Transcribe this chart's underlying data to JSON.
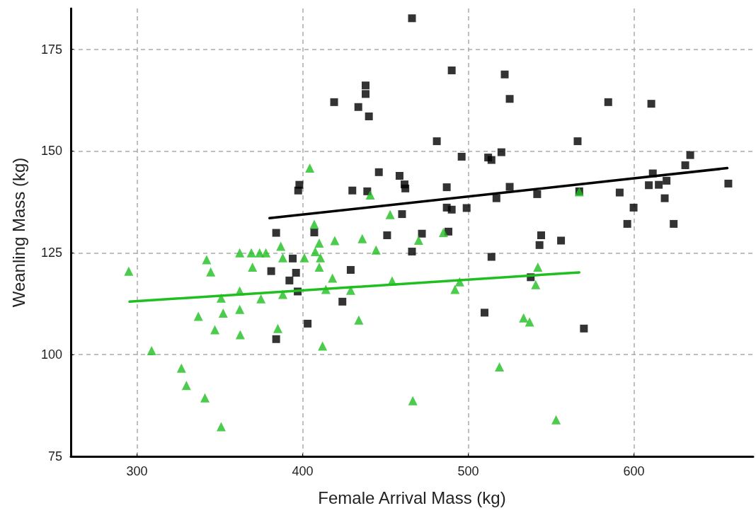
{
  "chart_data": {
    "type": "scatter",
    "xlabel": "Female Arrival Mass (kg)",
    "ylabel": "Weanling Mass (kg)",
    "xlim": [
      260,
      672
    ],
    "ylim": [
      75,
      185
    ],
    "xticks": [
      300,
      400,
      500,
      600
    ],
    "yticks": [
      75,
      100,
      125,
      150,
      175
    ],
    "grid": true,
    "series": [
      {
        "marker": "square",
        "color": "#000000",
        "x": [
          466,
          490,
          522,
          419,
          438,
          438,
          433.6,
          440,
          584.5,
          610.5,
          525,
          481,
          566,
          496,
          520,
          634,
          631,
          512,
          514,
          446,
          458.5,
          461.5,
          462,
          487,
          525,
          611.4,
          609,
          657,
          615,
          619.7,
          398,
          397.3,
          430,
          439,
          541.6,
          567,
          591.4,
          618.6,
          517,
          499,
          487,
          490,
          599.8,
          460,
          451,
          472,
          488,
          544,
          543,
          556,
          596,
          624,
          466,
          514,
          537.7,
          509.8,
          569.8,
          384,
          407,
          394,
          381,
          396,
          392,
          397,
          403,
          384,
          429,
          424
        ],
        "values": [
          182.6,
          169.8,
          168.8,
          162,
          166.1,
          164,
          160.8,
          158.5,
          162,
          161.6,
          162.8,
          152.4,
          152.4,
          148.6,
          149.7,
          149,
          146.5,
          148.4,
          147.8,
          144.8,
          143.9,
          141.8,
          140.8,
          141.1,
          141.2,
          144.5,
          141.6,
          142,
          141.7,
          142.7,
          141.7,
          140.3,
          140.3,
          140.1,
          139.4,
          140.1,
          139.8,
          138.4,
          138.4,
          136,
          136.1,
          135.6,
          136.1,
          134.5,
          129.3,
          129.7,
          130.2,
          129.3,
          126.9,
          128,
          132.1,
          132.1,
          125.3,
          124,
          119,
          110.3,
          106.4,
          129.9,
          130,
          123.6,
          120.5,
          120.1,
          118.2,
          115.5,
          107.6,
          103.8,
          120.8,
          113
        ]
      },
      {
        "marker": "triangle",
        "color": "#1fbf1f",
        "x": [
          404.3,
          407,
          410,
          419.4,
          407.6,
          410.7,
          410,
          418,
          414,
          401,
          386.8,
          388,
          377.8,
          374,
          369,
          362,
          342,
          344.5,
          369.7,
          295,
          362,
          350.8,
          374.8,
          388,
          362,
          352,
          337,
          347,
          362.3,
          385,
          412,
          308.8,
          326.8,
          329.8,
          341,
          350.8,
          452.8,
          436,
          444.3,
          470,
          485,
          429,
          454,
          494.8,
          492,
          542,
          540.7,
          433.9,
          533.4,
          537,
          518.8,
          466.5,
          553,
          567,
          440.8
        ],
        "values": [
          145.8,
          132,
          127.4,
          128,
          125.3,
          123.8,
          121.5,
          118.8,
          116,
          123.8,
          126.6,
          123.8,
          125,
          125,
          125,
          125,
          123.3,
          120.3,
          121.5,
          120.5,
          115.6,
          113.9,
          113.7,
          114.8,
          111.1,
          110.2,
          109.4,
          106.1,
          104.9,
          106.4,
          102.1,
          101,
          96.7,
          92.4,
          89.4,
          82.3,
          134.4,
          128.5,
          125.7,
          128.1,
          130,
          115.8,
          118.1,
          117.9,
          116,
          121.5,
          117.2,
          108.5,
          109,
          108,
          97,
          88.7,
          84,
          140,
          139.2
        ]
      },
      {
        "type": "line",
        "marker": "none",
        "line_style": "solid",
        "color": "#000000",
        "x": [
          380,
          656.4
        ],
        "values": [
          133.5,
          145.8
        ]
      },
      {
        "type": "line",
        "marker": "none",
        "line_style": "solid",
        "color": "#1fbf1f",
        "x": [
          295.5,
          567
        ],
        "values": [
          113,
          120.2
        ]
      }
    ]
  }
}
